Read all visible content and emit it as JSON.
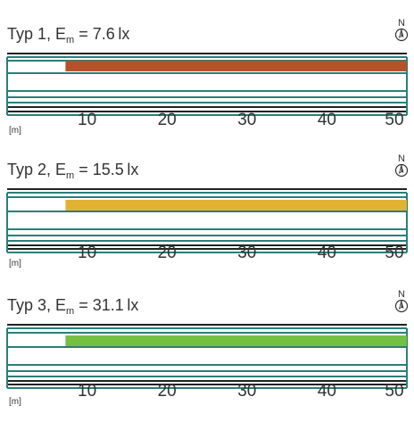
{
  "panels": [
    {
      "title_prefix": "Typ 1, E",
      "title_sub": "m",
      "title_suffix": " = 7.6 lx",
      "bar_color": "#b5522a",
      "compass_label": "N"
    },
    {
      "title_prefix": "Typ 2, E",
      "title_sub": "m",
      "title_suffix": " = 15.5 lx",
      "bar_color": "#e3b232",
      "compass_label": "N"
    },
    {
      "title_prefix": "Typ 3, E",
      "title_sub": "m",
      "title_suffix": " = 31.1 lx",
      "bar_color": "#74c043",
      "compass_label": "N"
    }
  ],
  "axis": {
    "unit": "[m]",
    "min": 0,
    "max": 50,
    "ticks": [
      "10",
      "20",
      "30",
      "40",
      "50"
    ],
    "bar_start": 7.3,
    "bar_end": 50
  },
  "colors": {
    "road_line": "#2b7e7a",
    "edge_line": "#222222"
  }
}
